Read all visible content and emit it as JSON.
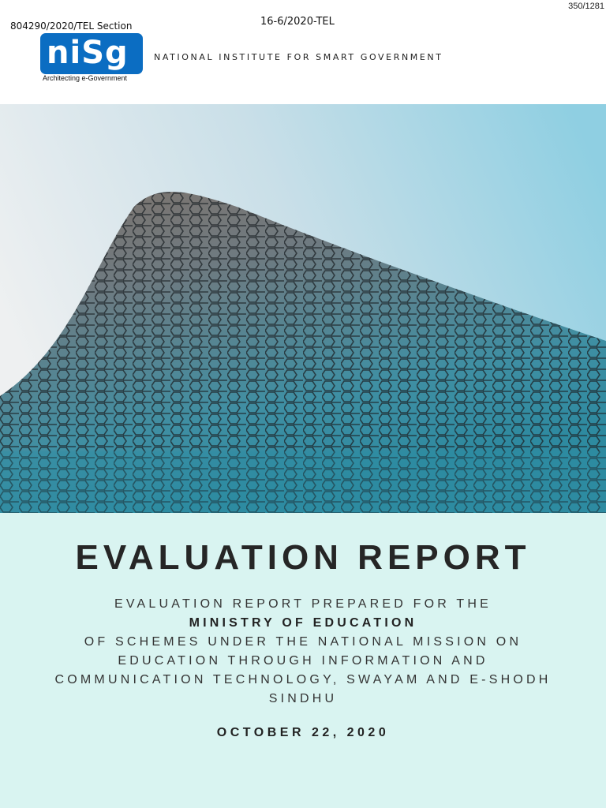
{
  "header": {
    "page_number": "350/1281",
    "file_number": "804290/2020/TEL Section",
    "section_code": "16-6/2020-TEL",
    "logo_text": "niSg",
    "logo_tagline": "Architecting e-Government",
    "institute_name": "NATIONAL INSTITUTE FOR SMART GOVERNMENT"
  },
  "cover": {
    "title": "EVALUATION REPORT",
    "subtitle_line1": "EVALUATION REPORT PREPARED FOR THE",
    "subtitle_ministry": "MINISTRY OF EDUCATION",
    "subtitle_rest": "OF SCHEMES UNDER THE NATIONAL MISSION ON EDUCATION THROUGH INFORMATION AND COMMUNICATION TECHNOLOGY, SWAYAM AND E-SHODH SINDHU",
    "date": "OCTOBER 22, 2020"
  },
  "colors": {
    "brand_blue": "#0b6dc2",
    "panel_bg": "#d9f4f1"
  }
}
